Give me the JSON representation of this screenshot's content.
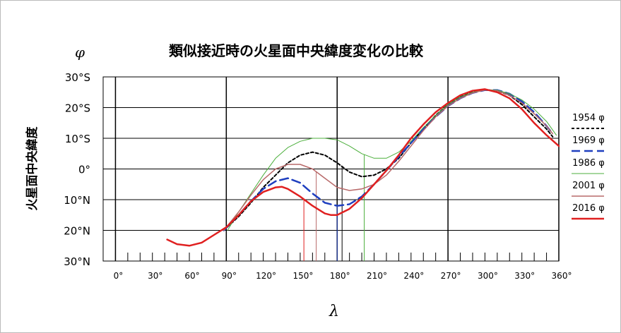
{
  "chart_data": {
    "type": "line",
    "title": "類似接近時の火星面中央緯度変化の比較",
    "ylabel_symbol": "φ",
    "ylabel": "火星面中央緯度",
    "xlabel": "λ",
    "xlim": [
      -10,
      360
    ],
    "ylim": [
      -30,
      30
    ],
    "y_reversed": true,
    "y_ticks": [
      {
        "value": 30,
        "label": "30°S"
      },
      {
        "value": 20,
        "label": "20°S"
      },
      {
        "value": 10,
        "label": "10°S"
      },
      {
        "value": 0,
        "label": "0°"
      },
      {
        "value": -10,
        "label": "10°N"
      },
      {
        "value": -20,
        "label": "20°N"
      },
      {
        "value": -30,
        "label": "30°N"
      }
    ],
    "x_ticks": [
      "0°",
      "30°",
      "60°",
      "90°",
      "120°",
      "150°",
      "180°",
      "210°",
      "240°",
      "270°",
      "300°",
      "330°",
      "360°"
    ],
    "x_tick_values": [
      0,
      30,
      60,
      90,
      120,
      150,
      180,
      210,
      240,
      270,
      300,
      330,
      360
    ],
    "major_vlines": [
      0,
      90,
      180,
      270,
      360
    ],
    "grid": true,
    "legend_position": "right",
    "series": [
      {
        "name": "1954 φ",
        "color": "#000000",
        "dash": "4,3",
        "width": 2,
        "x": [
          88,
          100,
          110,
          120,
          130,
          140,
          150,
          160,
          170,
          180,
          190,
          200,
          210,
          220,
          230,
          240,
          250,
          260,
          270,
          280,
          290,
          300,
          310,
          320,
          330,
          340,
          350,
          355
        ],
        "y": [
          -20,
          -15.5,
          -11,
          -6,
          -2,
          2,
          4.5,
          5.5,
          4.5,
          2,
          -1,
          -2.5,
          -2,
          0,
          3.5,
          8.5,
          13,
          17.5,
          21,
          23.5,
          25,
          25.8,
          25.5,
          24,
          21,
          17,
          13,
          10.5
        ],
        "marker": {
          "x": 184
        }
      },
      {
        "name": "1969 φ",
        "color": "#1f3fbf",
        "dash": "12,6",
        "width": 2.5,
        "x": [
          88,
          100,
          110,
          120,
          130,
          140,
          150,
          160,
          170,
          180,
          190,
          200,
          210,
          220,
          230,
          240,
          250,
          260,
          270,
          280,
          290,
          300,
          310,
          320,
          330,
          340,
          350,
          355
        ],
        "y": [
          -20,
          -15,
          -10.5,
          -6.5,
          -4,
          -3,
          -4.5,
          -8,
          -11,
          -12,
          -11.5,
          -9,
          -5,
          -0.5,
          4,
          8.5,
          13,
          17,
          20.5,
          23,
          24.8,
          25.7,
          25.7,
          24.5,
          22,
          18.5,
          14,
          11.5
        ],
        "marker": {
          "x": 180
        }
      },
      {
        "name": "1986 φ",
        "color": "#4caf3c",
        "dash": "",
        "width": 1,
        "x": [
          91,
          100,
          110,
          120,
          130,
          140,
          150,
          160,
          170,
          180,
          190,
          200,
          210,
          220,
          230,
          240,
          250,
          260,
          270,
          280,
          290,
          300,
          310,
          320,
          330,
          340,
          350,
          358
        ],
        "y": [
          -20,
          -14,
          -8,
          -2,
          3.5,
          7,
          9,
          10,
          10,
          9.5,
          7.5,
          5,
          3.5,
          3.5,
          5.5,
          9,
          13.5,
          17.5,
          21,
          23.5,
          25,
          25.8,
          25.7,
          24.5,
          22.5,
          19.5,
          15.5,
          11
        ],
        "marker": {
          "x": 202
        }
      },
      {
        "name": "2001 φ",
        "color": "#b86a6a",
        "dash": "",
        "width": 1.5,
        "x": [
          88,
          100,
          110,
          120,
          130,
          140,
          150,
          160,
          170,
          180,
          190,
          200,
          210,
          220,
          230,
          240,
          250,
          260,
          270,
          280,
          290,
          300,
          310,
          320,
          330,
          340,
          350,
          355
        ],
        "y": [
          -20,
          -14,
          -8.5,
          -3.5,
          0,
          1.5,
          1.5,
          0,
          -3,
          -6,
          -7,
          -6.5,
          -5,
          -2,
          2.5,
          7.5,
          12.5,
          17,
          20.5,
          23,
          24.8,
          25.7,
          25.5,
          24,
          21.5,
          18,
          14,
          11.5
        ],
        "marker": {
          "x": 163
        }
      },
      {
        "name": "2016 φ",
        "color": "#e02020",
        "dash": "",
        "width": 2.5,
        "x": [
          42,
          50,
          60,
          70,
          80,
          90,
          100,
          110,
          120,
          130,
          135,
          140,
          150,
          160,
          170,
          175,
          180,
          190,
          200,
          210,
          220,
          230,
          240,
          250,
          260,
          270,
          280,
          290,
          300,
          310,
          320,
          330,
          340,
          350,
          360
        ],
        "y": [
          -23,
          -24.5,
          -25,
          -24,
          -21.5,
          -19,
          -15,
          -10.5,
          -7.5,
          -6,
          -5.8,
          -6.5,
          -9,
          -12,
          -14.5,
          -15,
          -15,
          -13,
          -9.5,
          -5,
          -0.5,
          4.5,
          10,
          14.5,
          18.5,
          21.5,
          24,
          25.5,
          26,
          25,
          23,
          19.5,
          15,
          11,
          7.5
        ],
        "marker": {
          "x": 153
        }
      }
    ]
  }
}
